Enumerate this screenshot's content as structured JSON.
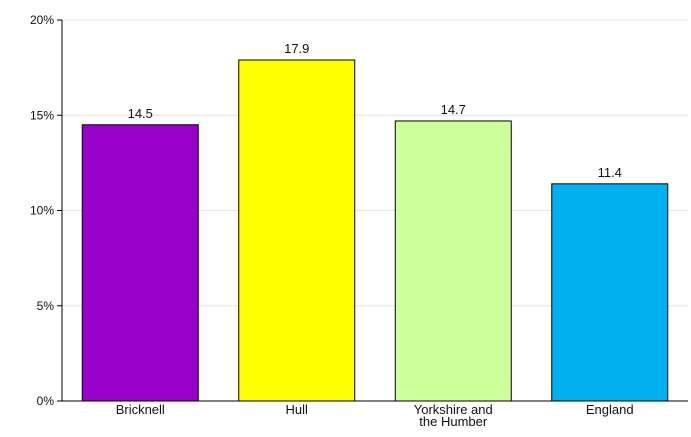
{
  "chart_data": {
    "type": "bar",
    "categories": [
      [
        "Bricknell"
      ],
      [
        "Hull"
      ],
      [
        "Yorkshire and",
        "the Humber"
      ],
      [
        "England"
      ]
    ],
    "values": [
      14.5,
      17.9,
      14.7,
      11.4
    ],
    "value_labels": [
      "14.5",
      "17.9",
      "14.7",
      "11.4"
    ],
    "bar_colors": [
      "#9900cc",
      "#ffff00",
      "#ccff99",
      "#00b0f0"
    ],
    "ylim": [
      0,
      20
    ],
    "yticks": [
      0,
      5,
      10,
      15,
      20
    ],
    "ytick_labels": [
      "0%",
      "5%",
      "10%",
      "15%",
      "20%"
    ],
    "grid": true,
    "gridline_color": "#e6e6e6",
    "axis_color": "#000000",
    "bar_border_color": "#000000",
    "title": "",
    "xlabel": "",
    "ylabel": ""
  }
}
